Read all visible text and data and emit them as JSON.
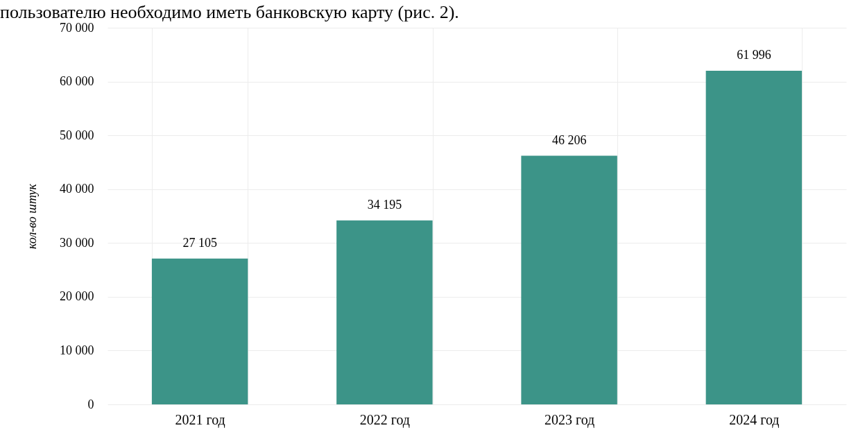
{
  "chart_data": {
    "type": "bar",
    "annotations": [
      "пользователю необходимо иметь банковскую карту (рис. 2)."
    ],
    "ylabel": "кол-во штук",
    "categories": [
      "2021 год",
      "2022 год",
      "2023 год",
      "2024 год"
    ],
    "values": [
      27105,
      34195,
      46206,
      61996
    ],
    "value_labels": [
      "27 105",
      "34 195",
      "46 206",
      "61 996"
    ],
    "color": "#3c9488",
    "ylim": [
      0,
      70000
    ],
    "yticks": [
      {
        "value": 0,
        "label": "0"
      },
      {
        "value": 10000,
        "label": "10 000"
      },
      {
        "value": 20000,
        "label": "20 000"
      },
      {
        "value": 30000,
        "label": "30 000"
      },
      {
        "value": 40000,
        "label": "40 000"
      },
      {
        "value": 50000,
        "label": "50 000"
      },
      {
        "value": 60000,
        "label": "60 000"
      },
      {
        "value": 70000,
        "label": "70 000"
      }
    ],
    "grid": true
  }
}
